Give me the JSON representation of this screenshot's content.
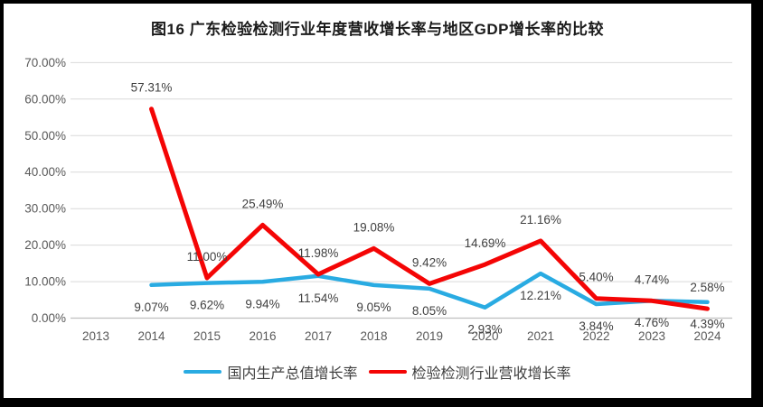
{
  "chart_data": {
    "type": "line",
    "title": "图16 广东检验检测行业年度营收增长率与地区GDP增长率的比较",
    "categories": [
      "2013",
      "2014",
      "2015",
      "2016",
      "2017",
      "2018",
      "2019",
      "2020",
      "2021",
      "2022",
      "2023",
      "2024"
    ],
    "series": [
      {
        "key": "gdp",
        "name": "国内生产总值增长率",
        "color": "#29ABE2",
        "label_position": "below",
        "values": [
          null,
          9.07,
          9.62,
          9.94,
          11.54,
          9.05,
          8.05,
          2.93,
          12.21,
          3.84,
          4.76,
          4.39
        ],
        "labels": [
          "",
          "9.07%",
          "9.62%",
          "9.94%",
          "11.54%",
          "9.05%",
          "8.05%",
          "2.93%",
          "12.21%",
          "3.84%",
          "4.76%",
          "4.39%"
        ]
      },
      {
        "key": "industry",
        "name": "检验检测行业营收增长率",
        "color": "#F40505",
        "label_position": "above",
        "values": [
          null,
          57.31,
          11.0,
          25.49,
          11.98,
          19.08,
          9.42,
          14.69,
          21.16,
          5.4,
          4.74,
          2.58
        ],
        "labels": [
          "",
          "57.31%",
          "11.00%",
          "25.49%",
          "11.98%",
          "19.08%",
          "9.42%",
          "14.69%",
          "21.16%",
          "5.40%",
          "4.74%",
          "2.58%"
        ]
      }
    ],
    "y_axis": {
      "min": 0,
      "max": 70,
      "step": 10,
      "tick_labels": [
        "0.00%",
        "10.00%",
        "20.00%",
        "30.00%",
        "40.00%",
        "50.00%",
        "60.00%",
        "70.00%"
      ]
    },
    "grid": true,
    "legend_position": "bottom",
    "data_labels": true
  },
  "colors": {
    "gridline": "#D9D9D9",
    "axis_line": "#BFBFBF",
    "tick_label": "#595959",
    "data_label": "#3F3F3F",
    "title_text": "#1A1A1A",
    "legend_text": "#3F3F3F",
    "background": "#FFFFFF",
    "frame": "#000000",
    "gdp_line": "#29ABE2",
    "industry_line": "#F40505"
  }
}
